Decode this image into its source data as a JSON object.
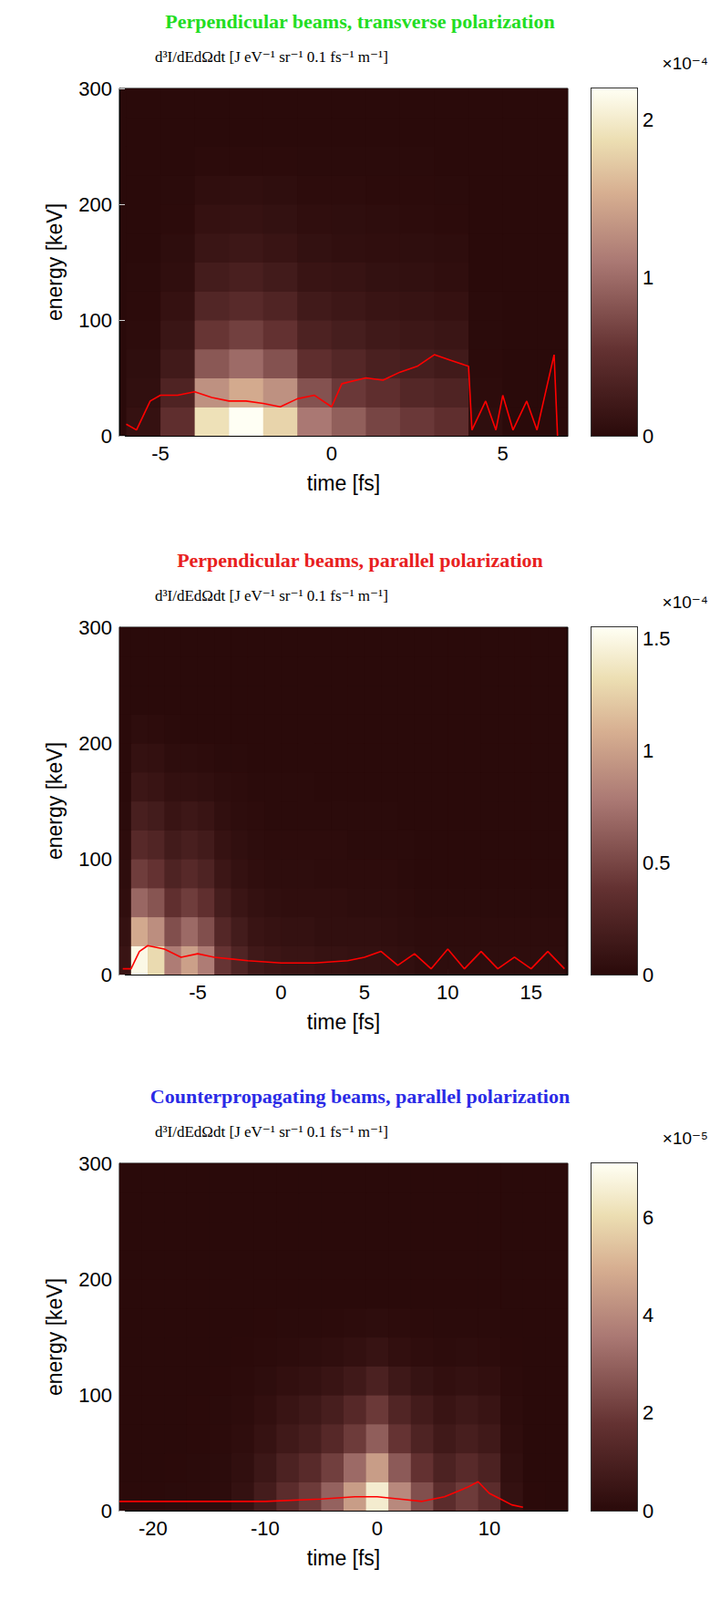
{
  "chart_data": [
    {
      "type": "heatmap",
      "title": "Perpendicular beams, transverse polarization",
      "colorbar_label": "d³I/dEdΩdt [J eV⁻¹ sr⁻¹ 0.1 fs⁻¹ m⁻¹]",
      "colorbar_multiplier": "×10⁻⁴",
      "colorbar_range": [
        0,
        2.2
      ],
      "colorbar_ticks": [
        0,
        1,
        2
      ],
      "xlabel": "time [fs]",
      "ylabel": "energy [keV]",
      "xlim": [
        -6.2,
        6.9
      ],
      "xticks": [
        -5,
        0,
        5
      ],
      "ylim": [
        0,
        300
      ],
      "yticks": [
        0,
        100,
        200,
        300
      ],
      "x_bins": [
        -6,
        -5,
        -4,
        -3,
        -2,
        -1,
        0,
        1,
        2,
        3,
        4,
        5,
        6,
        7
      ],
      "y_bins": [
        0,
        25,
        50,
        75,
        100,
        125,
        150,
        175,
        200,
        225,
        250,
        275,
        300
      ],
      "z": [
        [
          0.1,
          0.5,
          1.9,
          2.2,
          1.8,
          1.1,
          0.9,
          0.7,
          0.6,
          0.5,
          0.05,
          0,
          0
        ],
        [
          0.07,
          0.35,
          1.3,
          1.5,
          1.3,
          0.8,
          0.6,
          0.5,
          0.4,
          0.35,
          0.03,
          0,
          0
        ],
        [
          0.05,
          0.22,
          0.85,
          1.0,
          0.8,
          0.5,
          0.4,
          0.3,
          0.27,
          0.22,
          0.02,
          0,
          0
        ],
        [
          0.03,
          0.15,
          0.57,
          0.66,
          0.54,
          0.33,
          0.27,
          0.21,
          0.18,
          0.15,
          0.01,
          0,
          0
        ],
        [
          0.02,
          0.1,
          0.38,
          0.44,
          0.36,
          0.22,
          0.18,
          0.14,
          0.12,
          0.1,
          0.01,
          0,
          0
        ],
        [
          0.01,
          0.06,
          0.25,
          0.29,
          0.23,
          0.14,
          0.12,
          0.09,
          0.08,
          0.06,
          0,
          0,
          0
        ],
        [
          0,
          0.04,
          0.15,
          0.18,
          0.14,
          0.09,
          0.07,
          0.06,
          0.05,
          0.04,
          0,
          0,
          0
        ],
        [
          0,
          0.02,
          0.1,
          0.11,
          0.09,
          0.06,
          0.05,
          0.04,
          0.03,
          0.02,
          0,
          0,
          0
        ],
        [
          0,
          0.01,
          0.06,
          0.07,
          0.05,
          0.03,
          0.03,
          0.02,
          0.02,
          0.01,
          0,
          0,
          0
        ],
        [
          0,
          0,
          0.02,
          0.02,
          0.02,
          0.01,
          0.01,
          0.01,
          0.01,
          0,
          0,
          0,
          0
        ],
        [
          0,
          0,
          0,
          0,
          0,
          0,
          0,
          0,
          0,
          0,
          0,
          0,
          0
        ],
        [
          0,
          0,
          0,
          0,
          0,
          0,
          0,
          0,
          0,
          0,
          0,
          0,
          0
        ]
      ],
      "series": [
        {
          "type": "line",
          "color": "#ff0000",
          "x": [
            -6,
            -5.7,
            -5.3,
            -5,
            -4.5,
            -4,
            -3.5,
            -3,
            -2.5,
            -2,
            -1.5,
            -1,
            -0.5,
            0,
            0.3,
            1,
            1.5,
            2,
            2.5,
            3,
            3.5,
            4,
            4.1,
            4.5,
            4.8,
            5,
            5.3,
            5.7,
            6,
            6.5,
            6.6
          ],
          "values": [
            10,
            5,
            30,
            35,
            35,
            38,
            33,
            30,
            30,
            28,
            25,
            32,
            35,
            25,
            45,
            50,
            48,
            55,
            60,
            70,
            65,
            60,
            5,
            30,
            5,
            35,
            5,
            30,
            5,
            70,
            0
          ]
        }
      ]
    },
    {
      "type": "heatmap",
      "title": "Perpendicular beams, parallel polarization",
      "colorbar_label": "d³I/dEdΩdt [J eV⁻¹ sr⁻¹ 0.1 fs⁻¹ m⁻¹]",
      "colorbar_multiplier": "×10⁻⁴",
      "colorbar_range": [
        0,
        1.55
      ],
      "colorbar_ticks": [
        0,
        0.5,
        1,
        1.5
      ],
      "xlabel": "time [fs]",
      "ylabel": "energy [keV]",
      "xlim": [
        -9.7,
        17.2
      ],
      "xticks": [
        -5,
        0,
        5,
        10,
        15
      ],
      "ylim": [
        0,
        300
      ],
      "yticks": [
        0,
        100,
        200,
        300
      ],
      "x_bins": [
        -10,
        -9,
        -8,
        -7,
        -6,
        -5,
        -4,
        -3,
        -2,
        -1,
        0,
        1,
        2,
        3,
        4,
        5,
        6,
        7,
        8,
        9,
        10,
        11,
        12,
        13,
        14,
        15,
        16,
        17
      ],
      "y_bins": [
        0,
        25,
        50,
        75,
        100,
        125,
        150,
        175,
        200,
        225,
        250,
        275,
        300
      ],
      "z": [
        [
          0.1,
          1.5,
          1.3,
          0.8,
          1.0,
          0.8,
          0.4,
          0.25,
          0.15,
          0.12,
          0.1,
          0.1,
          0.08,
          0.08,
          0.07,
          0.07,
          0.06,
          0.05,
          0.03,
          0.03,
          0.03,
          0.03,
          0.03,
          0.03,
          0.03,
          0.03,
          0.03
        ],
        [
          0.07,
          1.05,
          0.9,
          0.55,
          0.7,
          0.55,
          0.28,
          0.17,
          0.1,
          0.08,
          0.07,
          0.07,
          0.05,
          0.05,
          0.05,
          0.05,
          0.04,
          0.03,
          0.02,
          0.02,
          0.02,
          0.02,
          0.02,
          0.02,
          0.02,
          0.02,
          0.02
        ],
        [
          0.04,
          0.68,
          0.58,
          0.36,
          0.45,
          0.36,
          0.18,
          0.11,
          0.07,
          0.05,
          0.04,
          0.04,
          0.04,
          0.04,
          0.03,
          0.03,
          0.03,
          0.02,
          0.01,
          0.01,
          0.01,
          0.01,
          0.01,
          0.01,
          0.01,
          0.01,
          0.01
        ],
        [
          0.03,
          0.45,
          0.39,
          0.24,
          0.3,
          0.24,
          0.12,
          0.07,
          0.04,
          0.03,
          0.03,
          0.03,
          0.02,
          0.02,
          0.02,
          0.02,
          0.02,
          0.01,
          0,
          0,
          0,
          0,
          0,
          0,
          0,
          0,
          0
        ],
        [
          0.02,
          0.3,
          0.26,
          0.16,
          0.2,
          0.16,
          0.08,
          0.05,
          0.03,
          0.02,
          0.02,
          0.02,
          0.02,
          0.02,
          0.01,
          0.01,
          0.01,
          0.01,
          0,
          0,
          0,
          0,
          0,
          0,
          0,
          0,
          0
        ],
        [
          0.01,
          0.2,
          0.17,
          0.1,
          0.13,
          0.1,
          0.05,
          0.03,
          0.02,
          0.01,
          0.01,
          0.01,
          0.01,
          0.01,
          0.01,
          0.01,
          0.01,
          0,
          0,
          0,
          0,
          0,
          0,
          0,
          0,
          0,
          0
        ],
        [
          0,
          0.12,
          0.1,
          0.06,
          0.06,
          0.05,
          0.03,
          0.02,
          0.01,
          0.01,
          0.01,
          0.01,
          0,
          0,
          0,
          0,
          0,
          0,
          0,
          0,
          0,
          0,
          0,
          0,
          0,
          0,
          0
        ],
        [
          0,
          0.07,
          0.06,
          0.03,
          0.03,
          0.02,
          0.01,
          0.01,
          0,
          0,
          0,
          0,
          0,
          0,
          0,
          0,
          0,
          0,
          0,
          0,
          0,
          0,
          0,
          0,
          0,
          0,
          0
        ],
        [
          0,
          0.03,
          0.02,
          0.01,
          0,
          0,
          0,
          0,
          0,
          0,
          0,
          0,
          0,
          0,
          0,
          0,
          0,
          0,
          0,
          0,
          0,
          0,
          0,
          0,
          0,
          0,
          0
        ],
        [
          0,
          0,
          0,
          0,
          0,
          0,
          0,
          0,
          0,
          0,
          0,
          0,
          0,
          0,
          0,
          0,
          0,
          0,
          0,
          0,
          0,
          0,
          0,
          0,
          0,
          0,
          0
        ],
        [
          0,
          0,
          0,
          0,
          0,
          0,
          0,
          0,
          0,
          0,
          0,
          0,
          0,
          0,
          0,
          0,
          0,
          0,
          0,
          0,
          0,
          0,
          0,
          0,
          0,
          0,
          0
        ],
        [
          0,
          0,
          0,
          0,
          0,
          0,
          0,
          0,
          0,
          0,
          0,
          0,
          0,
          0,
          0,
          0,
          0,
          0,
          0,
          0,
          0,
          0,
          0,
          0,
          0,
          0,
          0
        ]
      ],
      "series": [
        {
          "type": "line",
          "color": "#ff0000",
          "x": [
            -9.5,
            -9,
            -8.5,
            -8,
            -7,
            -6,
            -5,
            -4,
            -2,
            0,
            2,
            4,
            5,
            6,
            7,
            8,
            9,
            10,
            11,
            12,
            13,
            14,
            15,
            16,
            17
          ],
          "values": [
            5,
            5,
            20,
            25,
            22,
            15,
            18,
            15,
            12,
            10,
            10,
            12,
            15,
            20,
            8,
            18,
            5,
            22,
            5,
            20,
            5,
            15,
            5,
            20,
            5
          ]
        }
      ]
    },
    {
      "type": "heatmap",
      "title": "Counterpropagating beams, parallel polarization",
      "colorbar_label": "d³I/dEdΩdt [J eV⁻¹ sr⁻¹ 0.1 fs⁻¹ m⁻¹]",
      "colorbar_multiplier": "×10⁻⁵",
      "colorbar_range": [
        0,
        7.1
      ],
      "colorbar_ticks": [
        0,
        2,
        4,
        6
      ],
      "xlabel": "time [fs]",
      "ylabel": "energy [keV]",
      "xlim": [
        -23,
        17
      ],
      "xticks": [
        -20,
        -10,
        0,
        10
      ],
      "ylim": [
        0,
        300
      ],
      "yticks": [
        0,
        100,
        200,
        300
      ],
      "x_bins": [
        -23,
        -21,
        -19,
        -17,
        -15,
        -13,
        -11,
        -9,
        -7,
        -5,
        -3,
        -1,
        1,
        3,
        5,
        7,
        9,
        11,
        13,
        15,
        17
      ],
      "y_bins": [
        0,
        25,
        50,
        75,
        100,
        125,
        150,
        175,
        200,
        225,
        250,
        275,
        300
      ],
      "z": [
        [
          0.02,
          0.02,
          0.03,
          0.05,
          0.1,
          0.3,
          0.8,
          1.5,
          2,
          3,
          4.5,
          6.5,
          4,
          2.5,
          1.5,
          2,
          1.5,
          0.3,
          0.02,
          0
        ],
        [
          0.01,
          0.01,
          0.02,
          0.04,
          0.07,
          0.21,
          0.56,
          1.05,
          1.4,
          2.1,
          3.2,
          4.5,
          2.8,
          1.75,
          1.05,
          1.4,
          1.05,
          0.21,
          0.01,
          0
        ],
        [
          0.01,
          0.01,
          0.01,
          0.02,
          0.05,
          0.14,
          0.36,
          0.68,
          0.9,
          1.35,
          2,
          2.9,
          1.8,
          1.1,
          0.68,
          0.9,
          0.68,
          0.14,
          0.01,
          0
        ],
        [
          0,
          0,
          0.01,
          0.02,
          0.03,
          0.09,
          0.24,
          0.45,
          0.6,
          0.9,
          1.35,
          1.95,
          1.2,
          0.75,
          0.45,
          0.6,
          0.45,
          0.09,
          0,
          0
        ],
        [
          0,
          0,
          0,
          0.01,
          0.02,
          0.05,
          0.12,
          0.23,
          0.3,
          0.45,
          0.68,
          1,
          0.6,
          0.38,
          0.23,
          0.3,
          0.23,
          0.05,
          0,
          0
        ],
        [
          0,
          0,
          0,
          0,
          0.01,
          0.02,
          0.05,
          0.09,
          0.12,
          0.18,
          0.27,
          0.4,
          0.24,
          0.15,
          0.09,
          0.12,
          0.09,
          0.02,
          0,
          0
        ],
        [
          0,
          0,
          0,
          0,
          0,
          0.01,
          0.02,
          0.03,
          0.04,
          0.06,
          0.09,
          0.13,
          0.08,
          0.05,
          0.03,
          0.04,
          0.03,
          0.01,
          0,
          0
        ],
        [
          0,
          0,
          0,
          0,
          0,
          0,
          0,
          0,
          0,
          0,
          0,
          0,
          0,
          0,
          0,
          0,
          0,
          0,
          0,
          0
        ],
        [
          0,
          0,
          0,
          0,
          0,
          0,
          0,
          0,
          0,
          0,
          0,
          0,
          0,
          0,
          0,
          0,
          0,
          0,
          0,
          0
        ],
        [
          0,
          0,
          0,
          0,
          0,
          0,
          0,
          0,
          0,
          0,
          0,
          0,
          0,
          0,
          0,
          0,
          0,
          0,
          0,
          0
        ],
        [
          0,
          0,
          0,
          0,
          0,
          0,
          0,
          0,
          0,
          0,
          0,
          0,
          0,
          0,
          0,
          0,
          0,
          0,
          0,
          0
        ],
        [
          0,
          0,
          0,
          0,
          0,
          0,
          0,
          0,
          0,
          0,
          0,
          0,
          0,
          0,
          0,
          0,
          0,
          0,
          0,
          0
        ]
      ],
      "series": [
        {
          "type": "line",
          "color": "#ff0000",
          "x": [
            -23,
            -20,
            -15,
            -10,
            -5,
            -2,
            0,
            2,
            4,
            6,
            8,
            9,
            10,
            11,
            12,
            13
          ],
          "values": [
            8,
            8,
            8,
            8,
            10,
            12,
            12,
            10,
            8,
            12,
            20,
            25,
            15,
            10,
            5,
            3
          ]
        }
      ]
    }
  ]
}
